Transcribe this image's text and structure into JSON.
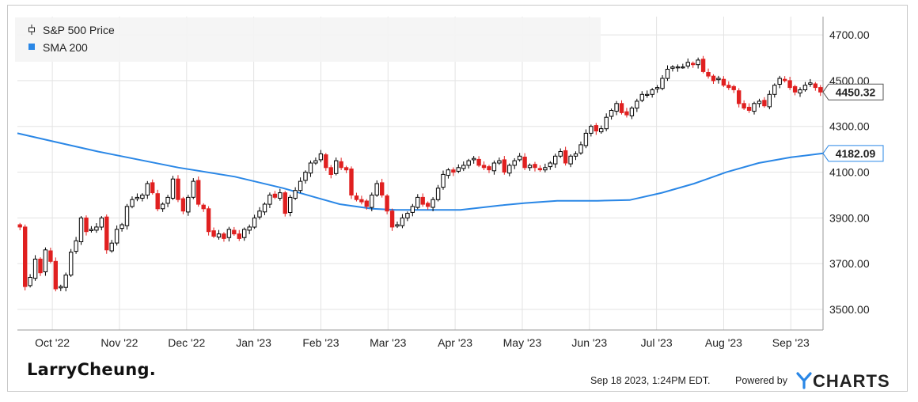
{
  "chart_data": {
    "type": "candlestick",
    "title": "",
    "xlabel": "",
    "ylabel": "",
    "ylim": [
      3410,
      4780
    ],
    "y_ticks": [
      "4700.00",
      "4500.00",
      "4300.00",
      "4100.00",
      "3900.00",
      "3700.00",
      "3500.00"
    ],
    "x_ticks": [
      "Oct '22",
      "Nov '22",
      "Dec '22",
      "Jan '23",
      "Feb '23",
      "Mar '23",
      "Apr '23",
      "May '23",
      "Jun '23",
      "Jul '23",
      "Aug '23",
      "Sep '23"
    ],
    "grid": true,
    "legend_position": "top-left",
    "series": [
      {
        "name": "S&P 500 Price",
        "kind": "candlestick",
        "up_color": "#000000",
        "down_color": "#e02020",
        "close": [
          3860,
          3600,
          3640,
          3720,
          3660,
          3760,
          3710,
          3590,
          3600,
          3650,
          3750,
          3800,
          3900,
          3840,
          3850,
          3860,
          3900,
          3760,
          3790,
          3850,
          3870,
          3950,
          3980,
          3990,
          4000,
          4050,
          4010,
          3940,
          3960,
          3990,
          4070,
          3980,
          3930,
          3990,
          4060,
          3960,
          3940,
          3840,
          3820,
          3830,
          3810,
          3850,
          3830,
          3810,
          3850,
          3860,
          3900,
          3930,
          3960,
          4000,
          3990,
          4010,
          3920,
          3990,
          4020,
          4060,
          4100,
          4140,
          4150,
          4180,
          4120,
          4090,
          4150,
          4120,
          4110,
          4000,
          3980,
          3970,
          3950,
          4000,
          4050,
          4000,
          3930,
          3860,
          3870,
          3900,
          3920,
          3950,
          3990,
          3960,
          3950,
          3980,
          4030,
          4090,
          4110,
          4100,
          4120,
          4130,
          4150,
          4160,
          4130,
          4120,
          4110,
          4140,
          4150,
          4100,
          4130,
          4150,
          4170,
          4120,
          4130,
          4120,
          4110,
          4120,
          4140,
          4170,
          4190,
          4140,
          4170,
          4180,
          4220,
          4270,
          4300,
          4280,
          4290,
          4340,
          4370,
          4400,
          4360,
          4350,
          4380,
          4410,
          4440,
          4440,
          4460,
          4470,
          4510,
          4550,
          4560,
          4560,
          4560,
          4580,
          4570,
          4590,
          4540,
          4520,
          4500,
          4510,
          4480,
          4470,
          4460,
          4400,
          4380,
          4370,
          4400,
          4410,
          4390,
          4440,
          4480,
          4510,
          4500,
          4470,
          4450,
          4460,
          4480,
          4490,
          4470,
          4450.32
        ],
        "last_value_label": "4450.32"
      },
      {
        "name": "SMA 200",
        "kind": "line",
        "color": "#2a87e6",
        "x_frac": [
          0.0,
          0.05,
          0.1,
          0.2,
          0.27,
          0.33,
          0.37,
          0.4,
          0.44,
          0.47,
          0.5,
          0.52,
          0.55,
          0.6,
          0.63,
          0.67,
          0.72,
          0.76,
          0.8,
          0.84,
          0.88,
          0.92,
          0.96,
          1.0
        ],
        "values": [
          4270,
          4230,
          4190,
          4120,
          4080,
          4030,
          3990,
          3960,
          3940,
          3935,
          3935,
          3935,
          3935,
          3955,
          3965,
          3975,
          3975,
          3978,
          4010,
          4050,
          4100,
          4140,
          4165,
          4182.09
        ],
        "last_value_label": "4182.09"
      }
    ]
  },
  "footer": {
    "brand": "LarryCheung.",
    "timestamp": "Sep 18 2023, 1:24PM EDT.",
    "powered_by": "Powered by",
    "ycharts": "CHARTS"
  },
  "colors": {
    "grid": "#e3e3e3",
    "axis": "#999999",
    "up": "#000000",
    "down": "#e02020",
    "sma": "#2a87e6",
    "ycharts_y": "#2a87e6"
  }
}
